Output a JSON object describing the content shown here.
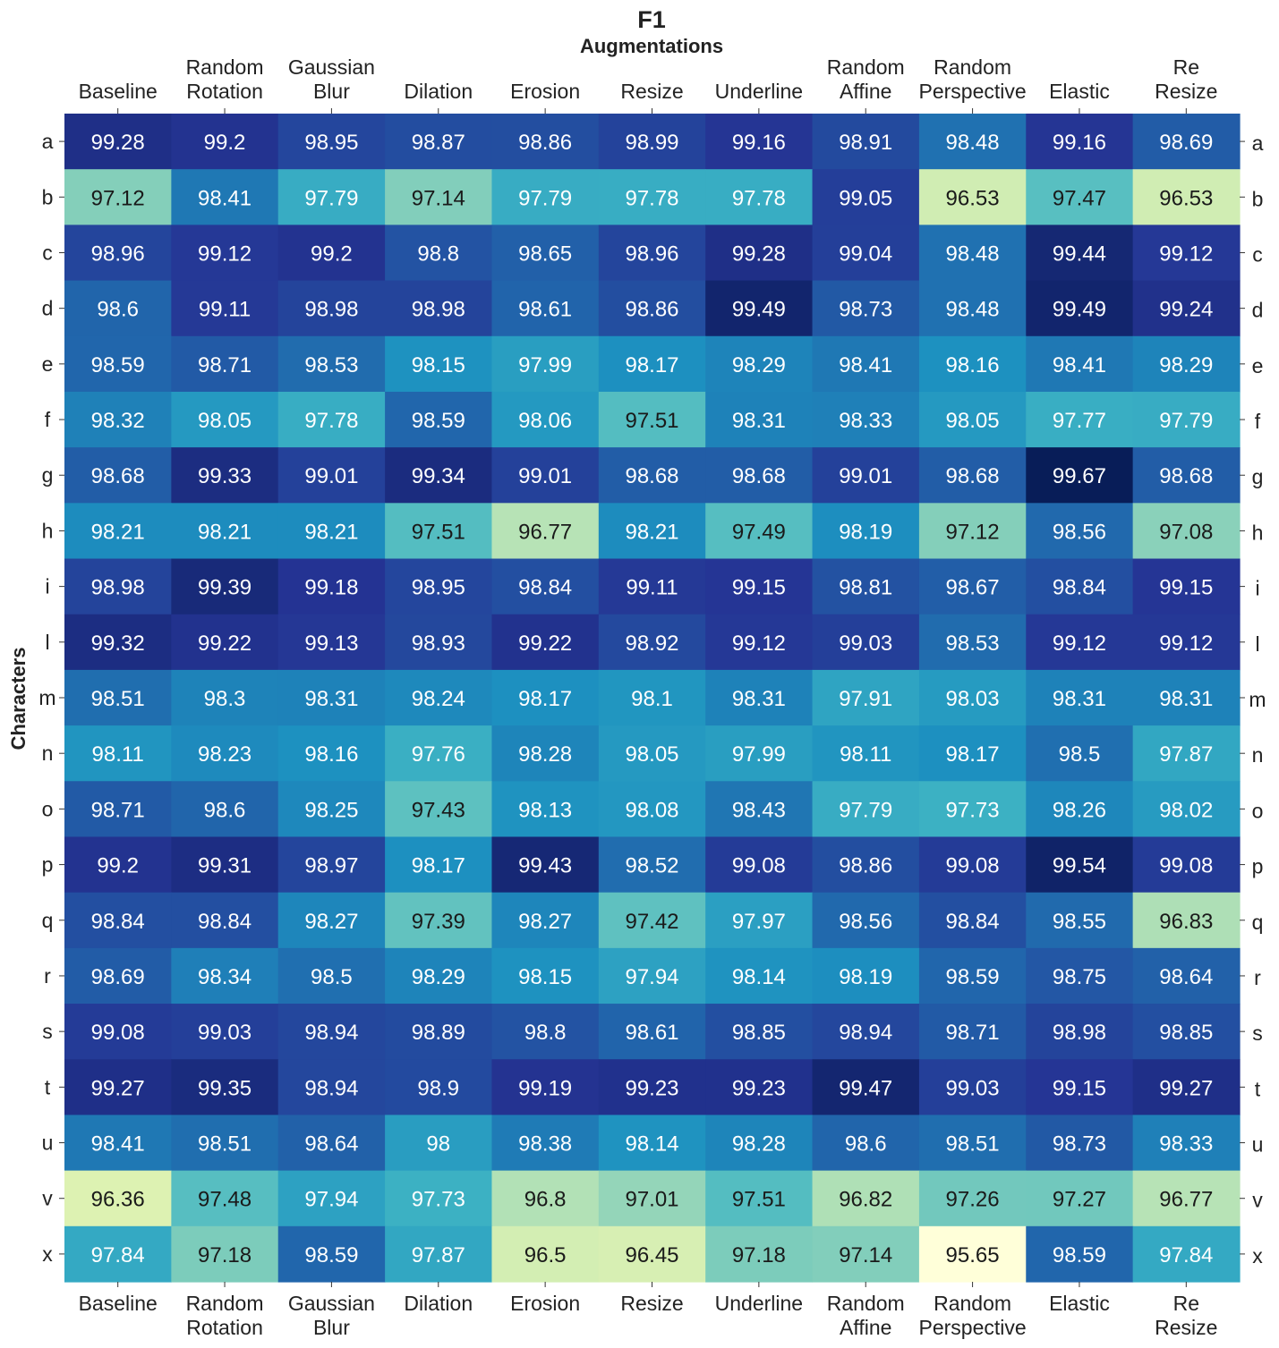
{
  "chart_data": {
    "type": "heatmap",
    "title": "F1",
    "xlabel": "Augmentations",
    "ylabel": "Characters",
    "columns": [
      [
        "Baseline"
      ],
      [
        "Random",
        "Rotation"
      ],
      [
        "Gaussian",
        "Blur"
      ],
      [
        "Dilation"
      ],
      [
        "Erosion"
      ],
      [
        "Resize"
      ],
      [
        "Underline"
      ],
      [
        "Random",
        "Affine"
      ],
      [
        "Random",
        "Perspective"
      ],
      [
        "Elastic"
      ],
      [
        "Re",
        "Resize"
      ]
    ],
    "rows": [
      "a",
      "b",
      "c",
      "d",
      "e",
      "f",
      "g",
      "h",
      "i",
      "l",
      "m",
      "n",
      "o",
      "p",
      "q",
      "r",
      "s",
      "t",
      "u",
      "v",
      "x"
    ],
    "values": [
      [
        "99.28",
        "99.2",
        "98.95",
        "98.87",
        "98.86",
        "98.99",
        "99.16",
        "98.91",
        "98.48",
        "99.16",
        "98.69"
      ],
      [
        "97.12",
        "98.41",
        "97.79",
        "97.14",
        "97.79",
        "97.78",
        "97.78",
        "99.05",
        "96.53",
        "97.47",
        "96.53"
      ],
      [
        "98.96",
        "99.12",
        "99.2",
        "98.8",
        "98.65",
        "98.96",
        "99.28",
        "99.04",
        "98.48",
        "99.44",
        "99.12"
      ],
      [
        "98.6",
        "99.11",
        "98.98",
        "98.98",
        "98.61",
        "98.86",
        "99.49",
        "98.73",
        "98.48",
        "99.49",
        "99.24"
      ],
      [
        "98.59",
        "98.71",
        "98.53",
        "98.15",
        "97.99",
        "98.17",
        "98.29",
        "98.41",
        "98.16",
        "98.41",
        "98.29"
      ],
      [
        "98.32",
        "98.05",
        "97.78",
        "98.59",
        "98.06",
        "97.51",
        "98.31",
        "98.33",
        "98.05",
        "97.77",
        "97.79"
      ],
      [
        "98.68",
        "99.33",
        "99.01",
        "99.34",
        "99.01",
        "98.68",
        "98.68",
        "99.01",
        "98.68",
        "99.67",
        "98.68"
      ],
      [
        "98.21",
        "98.21",
        "98.21",
        "97.51",
        "96.77",
        "98.21",
        "97.49",
        "98.19",
        "97.12",
        "98.56",
        "97.08"
      ],
      [
        "98.98",
        "99.39",
        "99.18",
        "98.95",
        "98.84",
        "99.11",
        "99.15",
        "98.81",
        "98.67",
        "98.84",
        "99.15"
      ],
      [
        "99.32",
        "99.22",
        "99.13",
        "98.93",
        "99.22",
        "98.92",
        "99.12",
        "99.03",
        "98.53",
        "99.12",
        "99.12"
      ],
      [
        "98.51",
        "98.3",
        "98.31",
        "98.24",
        "98.17",
        "98.1",
        "98.31",
        "97.91",
        "98.03",
        "98.31",
        "98.31"
      ],
      [
        "98.11",
        "98.23",
        "98.16",
        "97.76",
        "98.28",
        "98.05",
        "97.99",
        "98.11",
        "98.17",
        "98.5",
        "97.87"
      ],
      [
        "98.71",
        "98.6",
        "98.25",
        "97.43",
        "98.13",
        "98.08",
        "98.43",
        "97.79",
        "97.73",
        "98.26",
        "98.02"
      ],
      [
        "99.2",
        "99.31",
        "98.97",
        "98.17",
        "99.43",
        "98.52",
        "99.08",
        "98.86",
        "99.08",
        "99.54",
        "99.08"
      ],
      [
        "98.84",
        "98.84",
        "98.27",
        "97.39",
        "98.27",
        "97.42",
        "97.97",
        "98.56",
        "98.84",
        "98.55",
        "96.83"
      ],
      [
        "98.69",
        "98.34",
        "98.5",
        "98.29",
        "98.15",
        "97.94",
        "98.14",
        "98.19",
        "98.59",
        "98.75",
        "98.64"
      ],
      [
        "99.08",
        "99.03",
        "98.94",
        "98.89",
        "98.8",
        "98.61",
        "98.85",
        "98.94",
        "98.71",
        "98.98",
        "98.85"
      ],
      [
        "99.27",
        "99.35",
        "98.94",
        "98.9",
        "99.19",
        "99.23",
        "99.23",
        "99.47",
        "99.03",
        "99.15",
        "99.27"
      ],
      [
        "98.41",
        "98.51",
        "98.64",
        "98",
        "98.38",
        "98.14",
        "98.28",
        "98.6",
        "98.51",
        "98.73",
        "98.33"
      ],
      [
        "96.36",
        "97.48",
        "97.94",
        "97.73",
        "96.8",
        "97.01",
        "97.51",
        "96.82",
        "97.26",
        "97.27",
        "96.77"
      ],
      [
        "97.84",
        "97.18",
        "98.59",
        "97.87",
        "96.5",
        "96.45",
        "97.18",
        "97.14",
        "95.65",
        "98.59",
        "97.84"
      ]
    ],
    "colormap": "YlGnBu",
    "vmin": 95.65,
    "vmax": 99.67,
    "label_threshold": 97.6,
    "text_color_light": "#ffffff",
    "text_color_dark": "#1a1a1a"
  }
}
